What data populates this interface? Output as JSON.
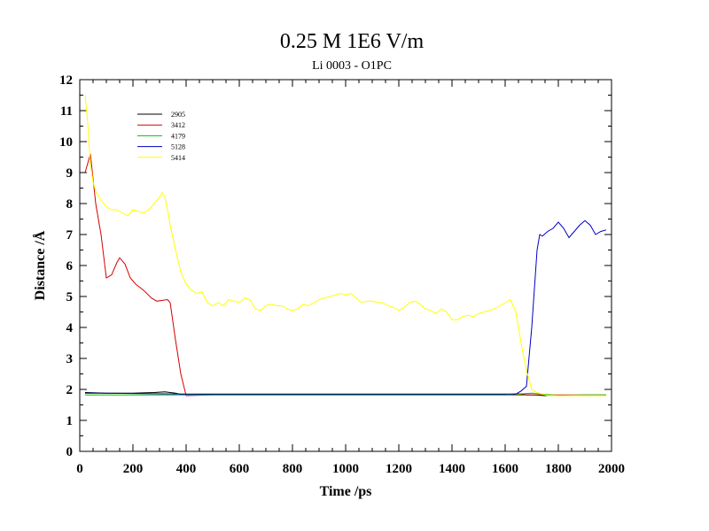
{
  "chart_data": {
    "type": "line",
    "title": "0.25 M 1E6 V/m",
    "subtitle": "Li 0003 - O1PC",
    "xlabel": "Time /ps",
    "ylabel": "Distance /Å",
    "xlim": [
      0,
      2000
    ],
    "ylim": [
      0,
      12
    ],
    "xticks": [
      0,
      200,
      400,
      600,
      800,
      1000,
      1200,
      1400,
      1600,
      1800,
      2000
    ],
    "yticks": [
      0,
      1,
      2,
      3,
      4,
      5,
      6,
      7,
      8,
      9,
      10,
      11,
      12
    ],
    "grid": false,
    "legend_position": "top-left",
    "series": [
      {
        "name": "2905",
        "color": "#000000",
        "x": [
          20,
          100,
          200,
          280,
          320,
          360,
          380,
          400,
          500,
          600,
          700,
          800,
          900,
          1000,
          1100,
          1200,
          1300,
          1400,
          1500,
          1600,
          1650,
          1680,
          1700,
          1750,
          1800,
          1900,
          1980
        ],
        "y": [
          1.9,
          1.88,
          1.88,
          1.9,
          1.92,
          1.88,
          1.84,
          1.82,
          1.83,
          1.83,
          1.83,
          1.83,
          1.83,
          1.83,
          1.84,
          1.83,
          1.83,
          1.83,
          1.83,
          1.83,
          1.86,
          1.82,
          1.82,
          1.8,
          1.8,
          1.8,
          1.8
        ]
      },
      {
        "name": "3412",
        "color": "#d40000",
        "x": [
          20,
          40,
          60,
          80,
          100,
          120,
          140,
          150,
          170,
          190,
          210,
          240,
          270,
          290,
          330,
          340,
          360,
          380,
          400,
          500,
          600,
          700,
          800,
          900,
          1000,
          1100,
          1200,
          1300,
          1400,
          1500,
          1600,
          1700,
          1800,
          1900,
          1980
        ],
        "y": [
          9.0,
          9.6,
          8.0,
          7.0,
          5.6,
          5.7,
          6.1,
          6.25,
          6.05,
          5.6,
          5.4,
          5.2,
          4.95,
          4.85,
          4.9,
          4.8,
          3.6,
          2.5,
          1.8,
          1.82,
          1.82,
          1.82,
          1.82,
          1.82,
          1.82,
          1.82,
          1.82,
          1.82,
          1.82,
          1.82,
          1.82,
          1.82,
          1.82,
          1.82,
          1.82
        ]
      },
      {
        "name": "4179",
        "color": "#00c000",
        "x": [
          20,
          200,
          400,
          600,
          800,
          1000,
          1200,
          1400,
          1600,
          1650,
          1700,
          1750,
          1800,
          1900,
          1980
        ],
        "y": [
          1.82,
          1.82,
          1.82,
          1.82,
          1.82,
          1.82,
          1.82,
          1.82,
          1.82,
          1.85,
          1.88,
          1.84,
          1.8,
          1.82,
          1.82
        ]
      },
      {
        "name": "5128",
        "color": "#0000c0",
        "x": [
          20,
          200,
          400,
          600,
          800,
          1000,
          1200,
          1400,
          1600,
          1640,
          1660,
          1680,
          1700,
          1720,
          1730,
          1740,
          1760,
          1780,
          1800,
          1820,
          1840,
          1860,
          1880,
          1900,
          1920,
          1940,
          1960,
          1980
        ],
        "y": [
          1.88,
          1.87,
          1.85,
          1.85,
          1.85,
          1.85,
          1.85,
          1.85,
          1.85,
          1.85,
          1.95,
          2.1,
          4.0,
          6.5,
          7.0,
          6.95,
          7.1,
          7.2,
          7.4,
          7.2,
          6.9,
          7.1,
          7.3,
          7.45,
          7.3,
          7.0,
          7.1,
          7.15
        ]
      },
      {
        "name": "5414",
        "color": "#ffff00",
        "x": [
          20,
          30,
          40,
          50,
          60,
          80,
          100,
          120,
          140,
          160,
          180,
          200,
          220,
          240,
          260,
          280,
          300,
          310,
          320,
          330,
          340,
          360,
          380,
          400,
          420,
          440,
          460,
          480,
          500,
          520,
          540,
          560,
          580,
          600,
          620,
          640,
          660,
          680,
          700,
          720,
          740,
          760,
          780,
          800,
          820,
          840,
          860,
          880,
          900,
          920,
          940,
          960,
          980,
          1000,
          1020,
          1040,
          1060,
          1080,
          1100,
          1120,
          1140,
          1160,
          1180,
          1200,
          1220,
          1240,
          1260,
          1280,
          1300,
          1320,
          1340,
          1360,
          1380,
          1400,
          1420,
          1440,
          1460,
          1480,
          1500,
          1520,
          1540,
          1560,
          1580,
          1600,
          1620,
          1640,
          1660,
          1680,
          1700,
          1720,
          1740,
          1760,
          1780,
          1800,
          1850,
          1900,
          1980
        ],
        "y": [
          11.5,
          10.6,
          9.3,
          8.7,
          8.4,
          8.1,
          7.9,
          7.8,
          7.8,
          7.7,
          7.6,
          7.8,
          7.75,
          7.7,
          7.8,
          8.0,
          8.2,
          8.35,
          8.2,
          7.8,
          7.3,
          6.5,
          5.8,
          5.4,
          5.2,
          5.1,
          5.15,
          4.8,
          4.7,
          4.8,
          4.7,
          4.9,
          4.85,
          4.8,
          4.95,
          4.9,
          4.6,
          4.55,
          4.7,
          4.75,
          4.7,
          4.7,
          4.6,
          4.55,
          4.6,
          4.75,
          4.7,
          4.8,
          4.9,
          4.95,
          5.0,
          5.05,
          5.1,
          5.05,
          5.1,
          4.95,
          4.8,
          4.85,
          4.85,
          4.8,
          4.8,
          4.7,
          4.65,
          4.55,
          4.65,
          4.8,
          4.85,
          4.75,
          4.6,
          4.55,
          4.45,
          4.6,
          4.5,
          4.25,
          4.25,
          4.35,
          4.4,
          4.35,
          4.45,
          4.5,
          4.55,
          4.6,
          4.7,
          4.8,
          4.9,
          4.5,
          3.5,
          2.6,
          2.0,
          1.9,
          1.85,
          1.8,
          1.8,
          1.8,
          1.8,
          1.8,
          1.8
        ]
      }
    ]
  }
}
